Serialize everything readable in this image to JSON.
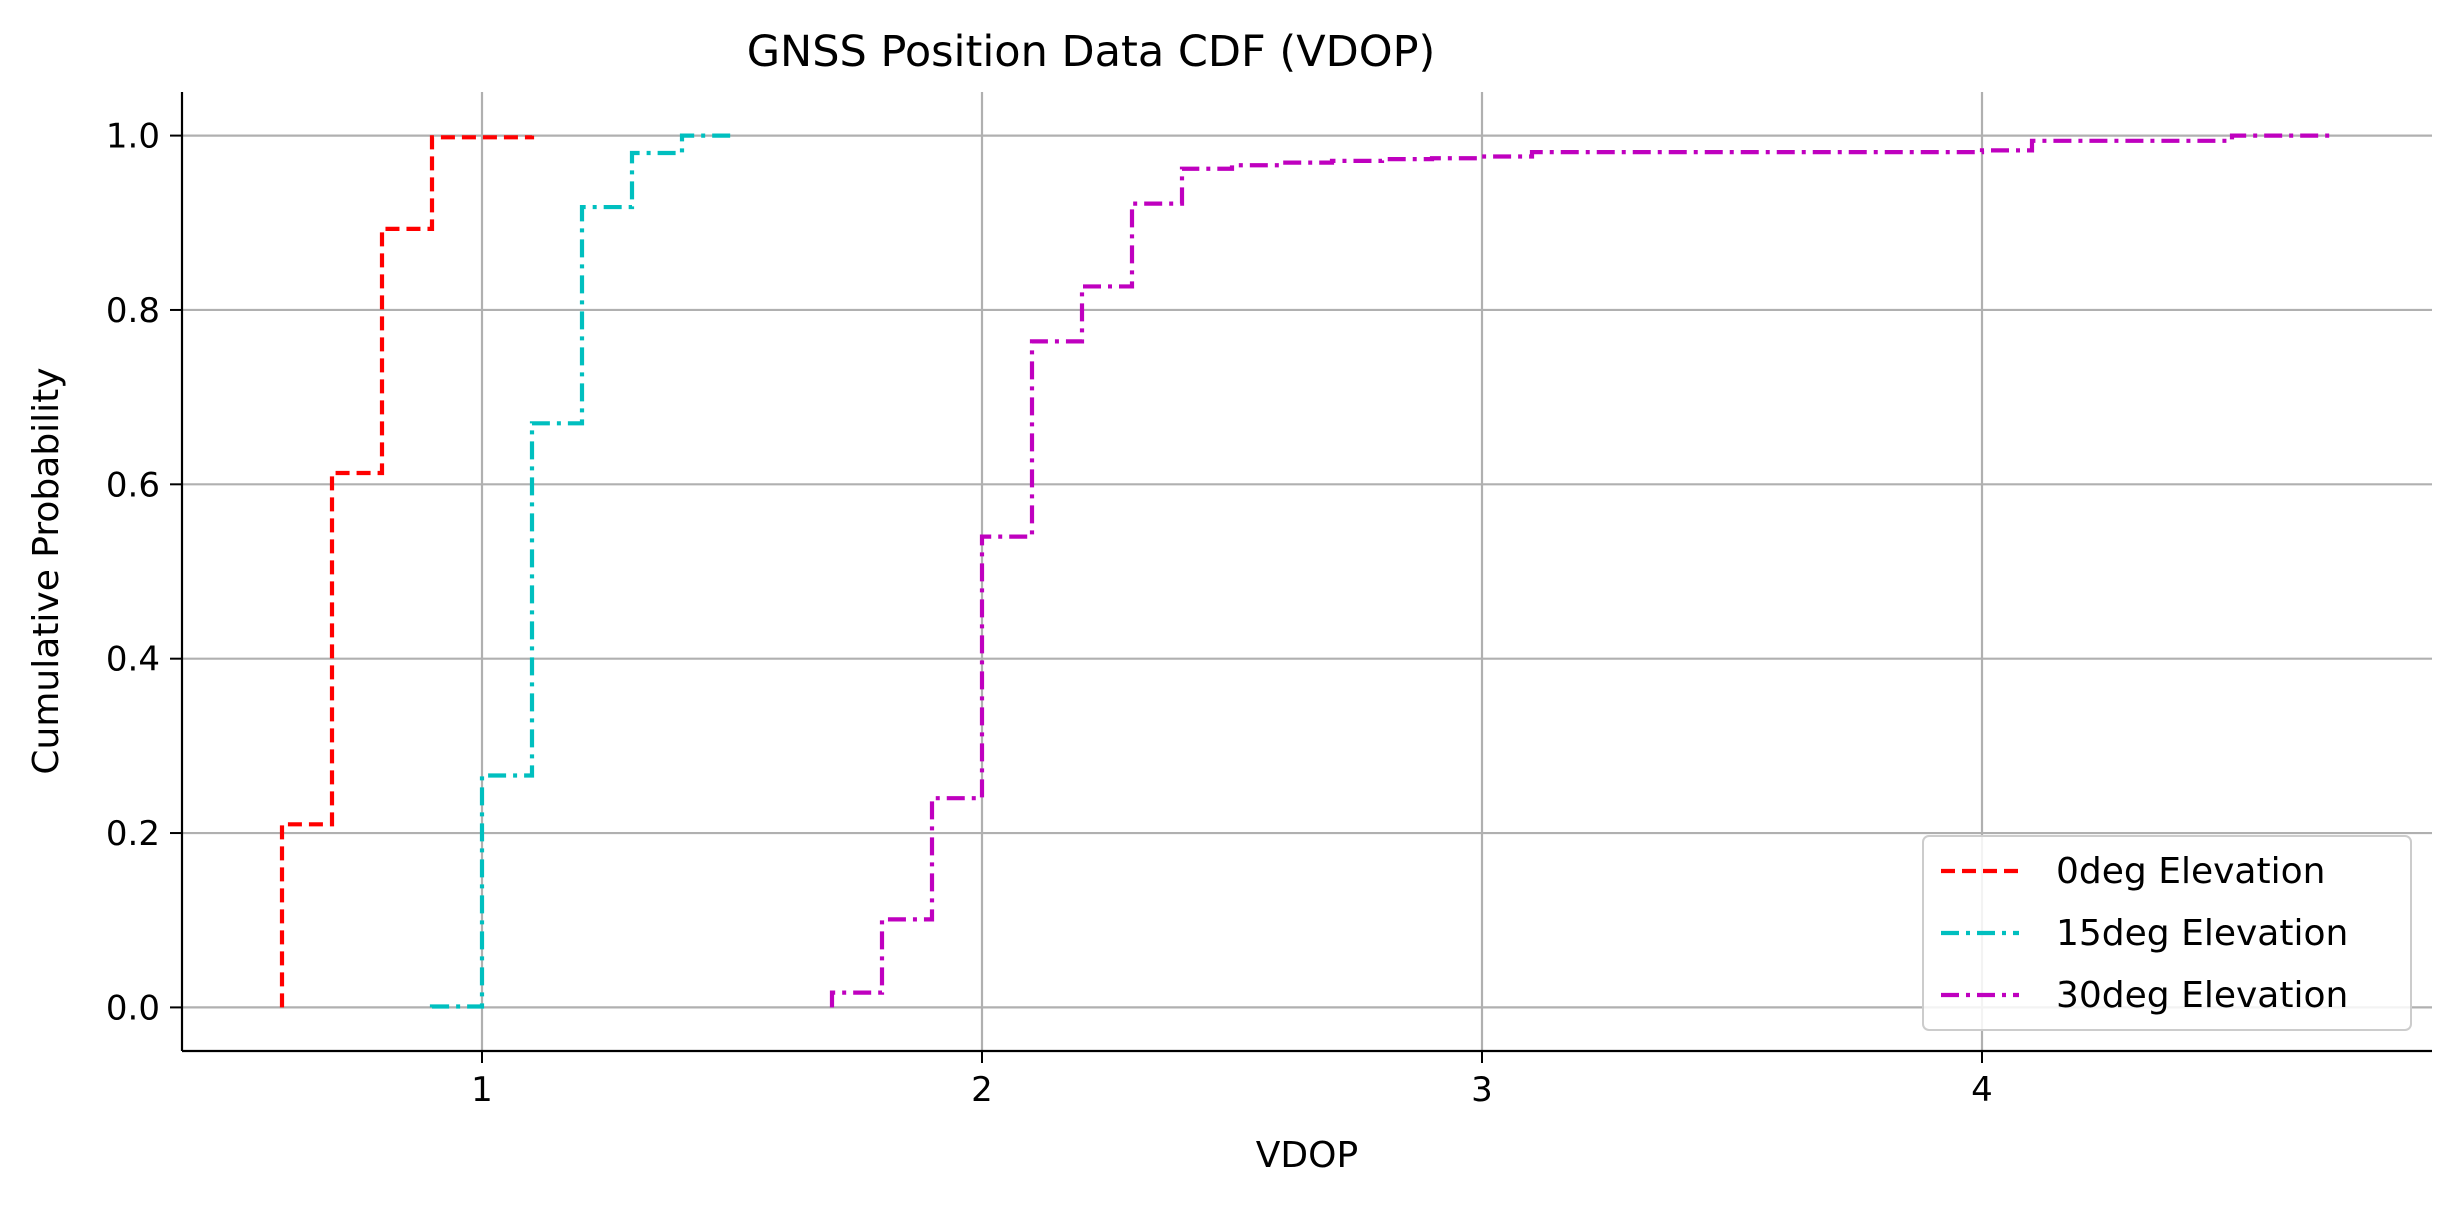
{
  "chart_data": {
    "type": "line",
    "title": "GNSS Position Data CDF (VDOP)",
    "xlabel": "VDOP",
    "ylabel": "Cumulative Probability",
    "xlim": [
      0.4,
      4.9
    ],
    "ylim": [
      -0.05,
      1.05
    ],
    "xticks": [
      1,
      2,
      3,
      4
    ],
    "xtick_labels": [
      "1",
      "2",
      "3",
      "4"
    ],
    "yticks": [
      0.0,
      0.2,
      0.4,
      0.6,
      0.8,
      1.0
    ],
    "ytick_labels": [
      "0.0",
      "0.2",
      "0.4",
      "0.6",
      "0.8",
      "1.0"
    ],
    "grid": true,
    "legend_position": "bottom-right",
    "series": [
      {
        "name": "0deg Elevation",
        "color": "#ff0000",
        "dash": "dashed",
        "step": "post",
        "x": [
          0.6,
          0.7,
          0.8,
          0.9,
          1.1
        ],
        "y": [
          0.21,
          0.613,
          0.893,
          0.998,
          1.0
        ]
      },
      {
        "name": "15deg Elevation",
        "color": "#00bfbf",
        "dash": "dashdot",
        "step": "post",
        "x": [
          0.9,
          1.0,
          1.1,
          1.2,
          1.3,
          1.4,
          1.5
        ],
        "y": [
          0.001,
          0.266,
          0.67,
          0.918,
          0.98,
          1.0,
          1.0
        ]
      },
      {
        "name": "30deg Elevation",
        "color": "#bf00bf",
        "dash": "dashdot",
        "step": "post",
        "x": [
          1.7,
          1.8,
          1.9,
          2.0,
          2.1,
          2.2,
          2.3,
          2.4,
          2.5,
          2.6,
          2.7,
          2.8,
          2.9,
          3.0,
          3.1,
          4.0,
          4.1,
          4.5,
          4.7
        ],
        "y": [
          0.017,
          0.101,
          0.24,
          0.54,
          0.764,
          0.827,
          0.922,
          0.962,
          0.966,
          0.969,
          0.971,
          0.973,
          0.974,
          0.976,
          0.981,
          0.983,
          0.994,
          1.0,
          1.0
        ]
      }
    ]
  }
}
